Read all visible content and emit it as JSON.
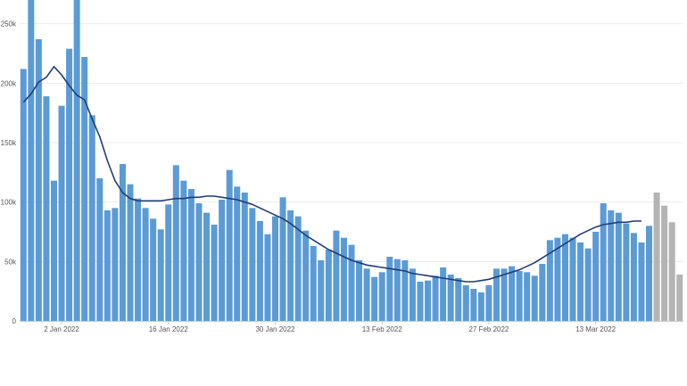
{
  "chart_data": {
    "type": "bar",
    "title": "",
    "xlabel": "",
    "ylabel": "",
    "ylim": [
      0,
      270000
    ],
    "yticks": [
      0,
      50000,
      100000,
      150000,
      200000,
      250000
    ],
    "ytick_labels": [
      "0",
      "50k",
      "100k",
      "150k",
      "200k",
      "250k"
    ],
    "xticks": [
      {
        "index": 5,
        "label": "2 Jan 2022"
      },
      {
        "index": 19,
        "label": "16 Jan 2022"
      },
      {
        "index": 33,
        "label": "30 Jan 2022"
      },
      {
        "index": 47,
        "label": "13 Feb 2022"
      },
      {
        "index": 61,
        "label": "27 Feb 2022"
      },
      {
        "index": 75,
        "label": "13 Mar 2022"
      }
    ],
    "grid": true,
    "legend": "none",
    "colors": {
      "complete": "#5b9bd5",
      "incomplete": "#b4b4b4",
      "average_line": "#1f3d7a"
    },
    "series": [
      {
        "values": [
          212000,
          272000,
          237000,
          189000,
          118000,
          181000,
          229000,
          275000,
          222000,
          173000,
          120000,
          93000,
          95000,
          132000,
          115000,
          103000,
          95000,
          86000,
          77000,
          98000,
          131000,
          118000,
          111000,
          99000,
          91000,
          81000,
          102000,
          127000,
          113000,
          108000,
          95000,
          84000,
          73000,
          88000,
          104000,
          93000,
          88000,
          76000,
          63000,
          51000,
          60000,
          76000,
          70000,
          64000,
          51000,
          44000,
          37000,
          41000,
          54000,
          52000,
          51000,
          44000,
          33000,
          34000,
          38000,
          45000,
          39000,
          36000,
          30000,
          27000,
          24000,
          30000,
          44000,
          44000,
          46000,
          42000,
          41000,
          38000,
          48000,
          68000,
          70000,
          73000,
          70000,
          66000,
          61000,
          75000,
          99000,
          93000,
          91000,
          82000,
          74000,
          66000,
          80000,
          108000,
          97000,
          83000,
          39000
        ],
        "incomplete_from_index": 83
      },
      {
        "values": [
          184000,
          191000,
          201000,
          205000,
          214000,
          207000,
          198000,
          190000,
          186000,
          170000,
          155000,
          135000,
          118000,
          108000,
          103000,
          101000,
          101000,
          101000,
          101000,
          102000,
          103000,
          103000,
          104000,
          104000,
          105000,
          105000,
          104000,
          103000,
          102000,
          100000,
          98000,
          95000,
          92000,
          89000,
          86000,
          82000,
          77000,
          72000,
          68000,
          64000,
          60000,
          57000,
          54000,
          51000,
          49000,
          47000,
          46000,
          45000,
          44000,
          43000,
          42000,
          40000,
          39000,
          38000,
          37000,
          36000,
          35000,
          34000,
          33000,
          33000,
          34000,
          35000,
          37000,
          39000,
          41000,
          43000,
          46000,
          49000,
          53000,
          57000,
          61000,
          65000,
          69000,
          73000,
          76000,
          79000,
          81000,
          82000,
          83000,
          83000,
          84000,
          84000
        ]
      }
    ]
  }
}
